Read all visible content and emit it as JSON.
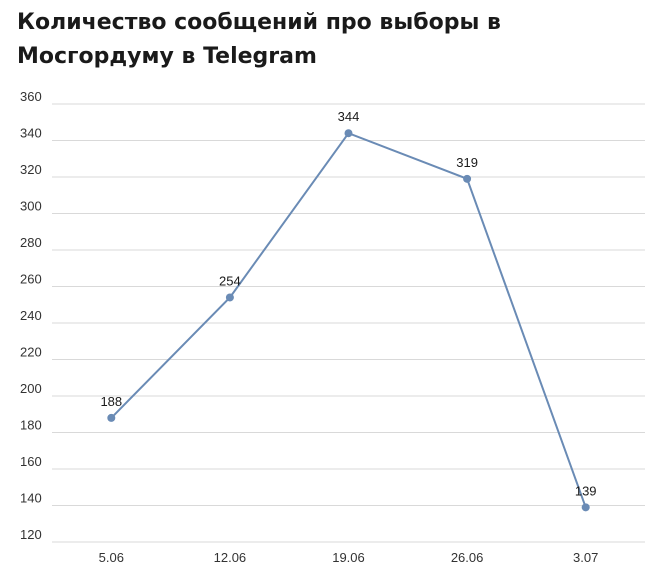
{
  "chart_data": {
    "type": "line",
    "title": "Количество сообщений про выборы в Мосгордуму в Telegram",
    "categories": [
      "5.06",
      "12.06",
      "19.06",
      "26.06",
      "3.07"
    ],
    "series": [
      {
        "values": [
          188,
          254,
          344,
          319,
          139
        ]
      }
    ],
    "data_labels": [
      "188",
      "254",
      "344",
      "319",
      "139"
    ],
    "yticks": [
      120,
      140,
      160,
      180,
      200,
      220,
      240,
      260,
      280,
      300,
      320,
      340,
      360
    ],
    "ylim": [
      120,
      360
    ],
    "grid": true,
    "line_color": "#6a8bb5",
    "grid_color": "#d9d9d9"
  }
}
